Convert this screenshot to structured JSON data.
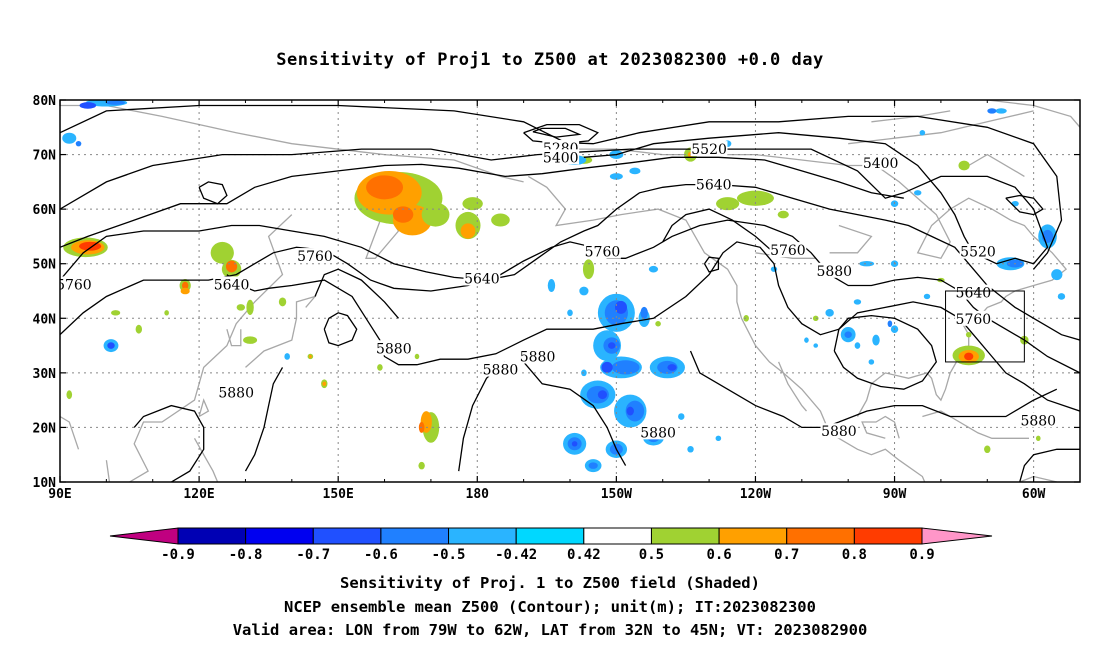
{
  "title": "Sensitivity of Proj1 to Z500 at 2023082300 +0.0 day",
  "map": {
    "lat_labels": [
      "80N",
      "70N",
      "60N",
      "50N",
      "40N",
      "30N",
      "20N",
      "10N"
    ],
    "lon_labels": [
      "90E",
      "120E",
      "150E",
      "180",
      "150W",
      "120W",
      "90W",
      "60W"
    ],
    "contour_labels": [
      {
        "text": "5280",
        "lon": 198,
        "lat": 71.2
      },
      {
        "text": "5400",
        "lon": 198,
        "lat": 69.5
      },
      {
        "text": "5520",
        "lon": 230,
        "lat": 71.0
      },
      {
        "text": "5400",
        "lon": 267,
        "lat": 68.5
      },
      {
        "text": "5640",
        "lon": 231,
        "lat": 64.5
      },
      {
        "text": "5760",
        "lon": 145,
        "lat": 51.4
      },
      {
        "text": "5640",
        "lon": 127,
        "lat": 46.2
      },
      {
        "text": "5760",
        "lon": 93,
        "lat": 46.2
      },
      {
        "text": "5640",
        "lon": 181,
        "lat": 47.3
      },
      {
        "text": "5760",
        "lon": 207,
        "lat": 52.2
      },
      {
        "text": "5760",
        "lon": 247,
        "lat": 52.5
      },
      {
        "text": "5880",
        "lon": 257,
        "lat": 48.7
      },
      {
        "text": "5520",
        "lon": 288,
        "lat": 52.2
      },
      {
        "text": "5640",
        "lon": 287,
        "lat": 44.7
      },
      {
        "text": "5760",
        "lon": 287,
        "lat": 39.9
      },
      {
        "text": "5880",
        "lon": 162,
        "lat": 34.5
      },
      {
        "text": "5880",
        "lon": 185,
        "lat": 30.6
      },
      {
        "text": "5880",
        "lon": 193,
        "lat": 33.0
      },
      {
        "text": "5880",
        "lon": 128,
        "lat": 26.4
      },
      {
        "text": "5880",
        "lon": 219,
        "lat": 19.1
      },
      {
        "text": "5880",
        "lon": 258,
        "lat": 19.3
      },
      {
        "text": "5880",
        "lon": 301,
        "lat": 21.3
      }
    ],
    "valid_box": {
      "lon_min": 281,
      "lon_max": 298,
      "lat_min": 32,
      "lat_max": 45
    }
  },
  "colorbar": {
    "labels": [
      "-0.9",
      "-0.8",
      "-0.7",
      "-0.6",
      "-0.5",
      "-0.42",
      "0.42",
      "0.5",
      "0.6",
      "0.7",
      "0.8",
      "0.9"
    ],
    "colors": [
      "#c00080",
      "#0000b4",
      "#0000f0",
      "#2050ff",
      "#2080ff",
      "#2ab4ff",
      "#00d8ff",
      "#ffffff",
      "#a0d232",
      "#ffa000",
      "#ff7000",
      "#ff3c00",
      "#ff0000",
      "#ff96c8"
    ]
  },
  "caption": {
    "line1": "Sensitivity of Proj. 1 to Z500 field (Shaded)",
    "line2": "NCEP ensemble mean Z500 (Contour); unit(m); IT:2023082300",
    "line3": "Valid area: LON from 79W to 62W, LAT from 32N to 45N; VT: 2023082900"
  }
}
